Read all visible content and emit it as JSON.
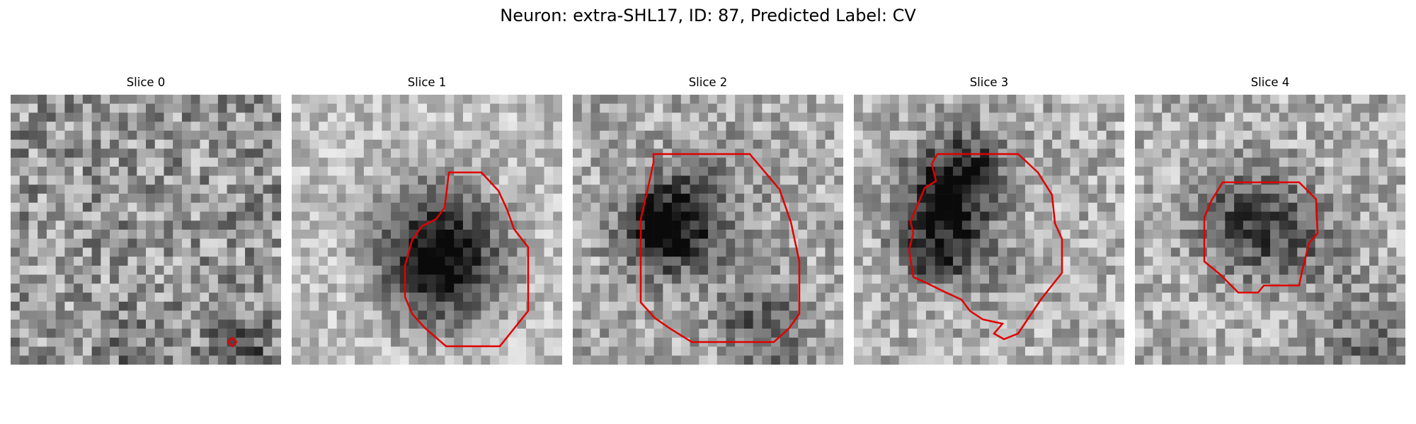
{
  "figure": {
    "title": "Neuron: extra-SHL17, ID: 87, Predicted Label: CV"
  },
  "colors": {
    "contour": "#e00000",
    "background": "#ffffff"
  },
  "panels": [
    {
      "title": "Slice 0"
    },
    {
      "title": "Slice 1"
    },
    {
      "title": "Slice 2"
    },
    {
      "title": "Slice 3"
    },
    {
      "title": "Slice 4"
    }
  ]
}
